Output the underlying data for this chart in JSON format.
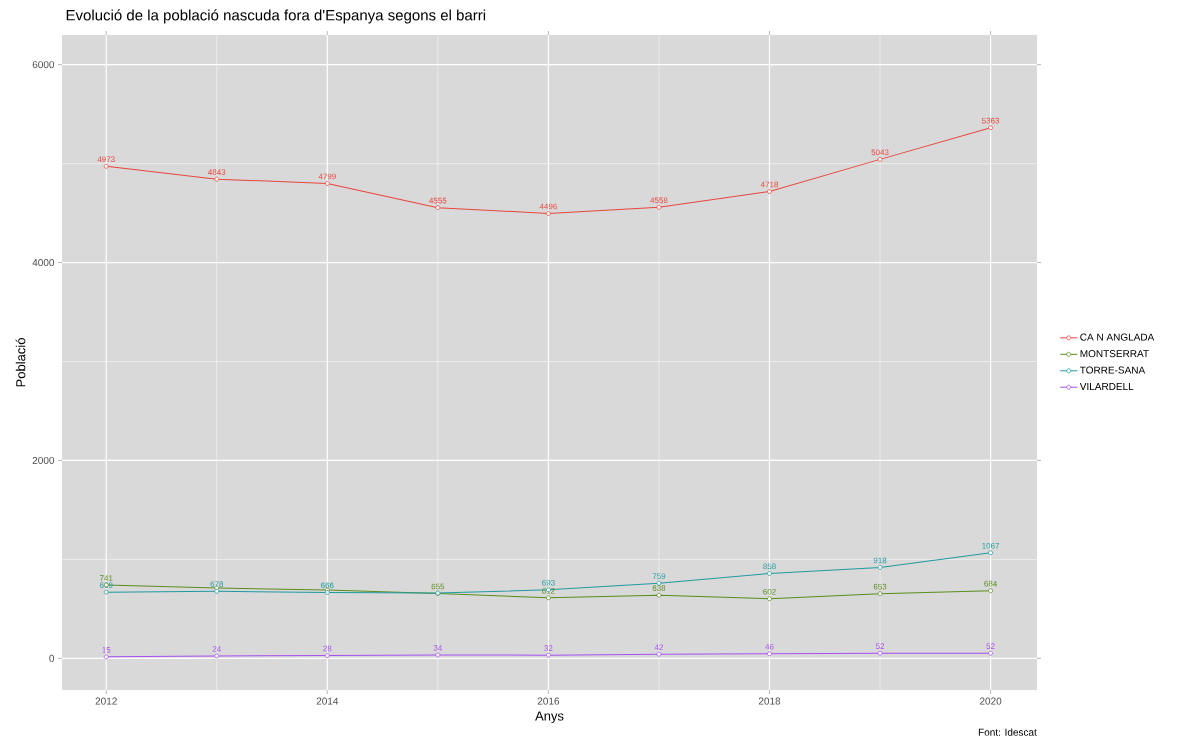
{
  "chart_data": {
    "type": "line",
    "title": "Evolució de la població nascuda fora d'Espanya segons el barri",
    "xlabel": "Anys",
    "ylabel": "Població",
    "x": [
      2012,
      2013,
      2014,
      2015,
      2016,
      2017,
      2018,
      2019,
      2020
    ],
    "series": [
      {
        "name": "CA N ANGLADA",
        "color": "#e8463c",
        "values": [
          4973,
          4843,
          4799,
          4555,
          4496,
          4558,
          4718,
          5043,
          5363
        ],
        "value_labels": [
          "4973",
          "4843",
          "4799",
          "4555",
          "4496",
          "4558",
          "4718",
          "5043",
          "5363"
        ]
      },
      {
        "name": "MONTSERRAT",
        "color": "#5b8c1e",
        "values": [
          741,
          710,
          690,
          655,
          612,
          638,
          602,
          653,
          684
        ],
        "value_labels": [
          "741",
          null,
          null,
          "655",
          "612",
          "638",
          "602",
          "653",
          "684"
        ]
      },
      {
        "name": "TORRE-SANA",
        "color": "#1f9aa0",
        "values": [
          669,
          678,
          666,
          660,
          693,
          759,
          858,
          918,
          1067
        ],
        "value_labels": [
          "669",
          "678",
          "666",
          null,
          "693",
          "759",
          "858",
          "918",
          "1067"
        ]
      },
      {
        "name": "VILARDELL",
        "color": "#a74ff0",
        "values": [
          15,
          24,
          28,
          34,
          32,
          42,
          46,
          52,
          52
        ],
        "value_labels": [
          "15",
          "24",
          "28",
          "34",
          "32",
          "42",
          "46",
          "52",
          "52"
        ]
      }
    ],
    "xlim": [
      2011.6,
      2020.42
    ],
    "ylim": [
      -320,
      6300
    ],
    "xticks": [
      2012,
      2014,
      2016,
      2018,
      2020
    ],
    "yticks": [
      0,
      2000,
      4000,
      6000
    ],
    "grid": true,
    "legend": "right",
    "marker": "circle",
    "line_style": "solid",
    "annotations": [
      "Font: Idescat"
    ]
  }
}
